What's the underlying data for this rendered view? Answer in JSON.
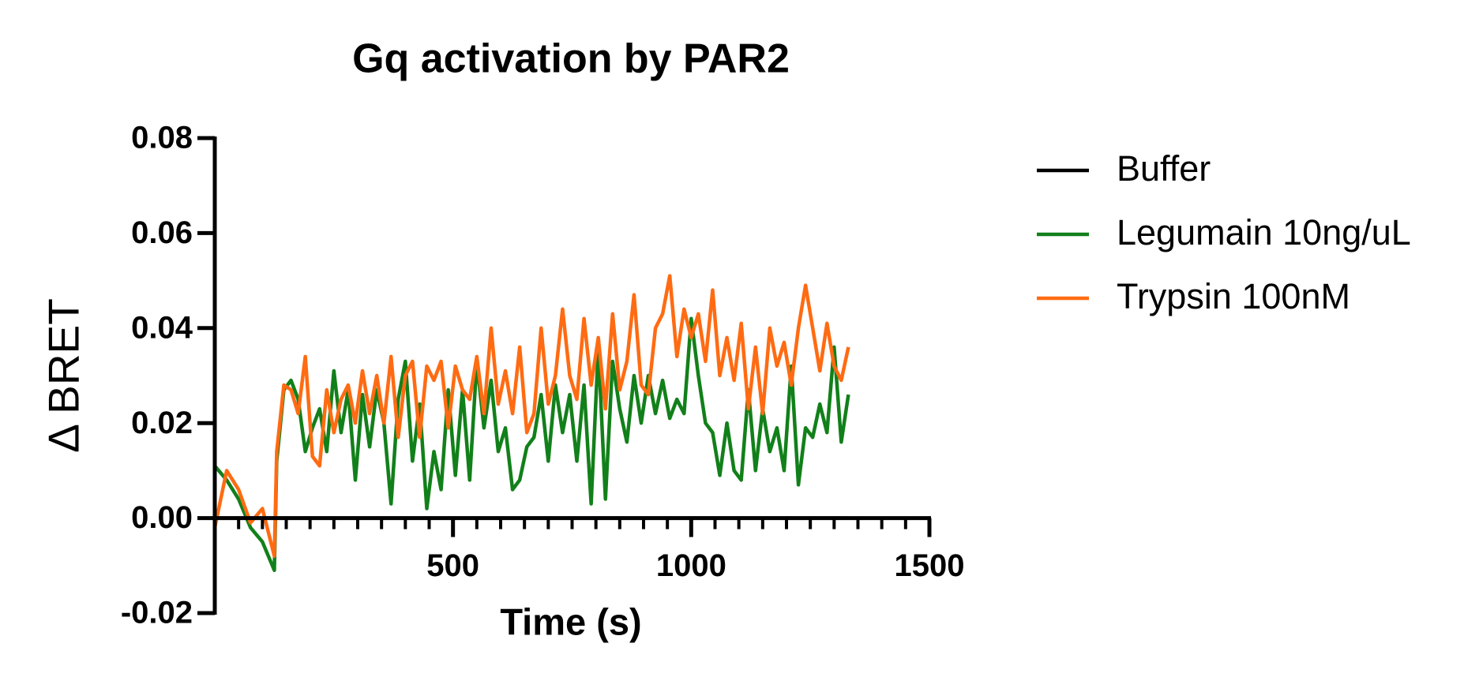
{
  "chart_data": {
    "type": "line",
    "title": "Gq activation by PAR2",
    "x_label": "Time (s)",
    "y_label": "Δ BRET",
    "xlim": [
      0,
      1500
    ],
    "xticks": [
      500,
      1000,
      1500
    ],
    "xminorticks": [
      0,
      50,
      100,
      150,
      200,
      250,
      300,
      350,
      400,
      450,
      550,
      600,
      650,
      700,
      750,
      800,
      850,
      900,
      950,
      1050,
      1100,
      1150,
      1200,
      1250,
      1300,
      1350,
      1400,
      1450
    ],
    "ylim": [
      -0.02,
      0.08
    ],
    "yticks": [
      -0.02,
      {
        "value": 0,
        "label": "0.00"
      },
      0.02,
      0.04,
      0.06,
      0.08
    ],
    "legend": "right",
    "x": [
      0,
      25,
      50,
      75,
      100,
      125,
      130,
      145,
      160,
      175,
      190,
      205,
      220,
      235,
      250,
      265,
      280,
      295,
      310,
      325,
      340,
      355,
      370,
      385,
      400,
      415,
      430,
      445,
      460,
      475,
      490,
      505,
      520,
      535,
      550,
      565,
      580,
      595,
      610,
      625,
      640,
      655,
      670,
      685,
      700,
      715,
      730,
      745,
      760,
      775,
      790,
      805,
      820,
      835,
      850,
      865,
      880,
      895,
      910,
      925,
      940,
      955,
      970,
      985,
      1000,
      1015,
      1030,
      1045,
      1060,
      1075,
      1090,
      1105,
      1120,
      1135,
      1150,
      1165,
      1180,
      1195,
      1210,
      1225,
      1240,
      1255,
      1270,
      1285,
      1300,
      1315,
      1330
    ],
    "series": [
      {
        "name": "Buffer",
        "color": "#000000",
        "values": [
          0,
          0,
          0,
          0,
          0,
          0,
          0,
          0,
          0,
          0,
          0,
          0,
          0,
          0,
          0,
          0,
          0,
          0,
          0,
          0,
          0,
          0,
          0,
          0,
          0,
          0,
          0,
          0,
          0,
          0,
          0,
          0,
          0,
          0,
          0,
          0,
          0,
          0,
          0,
          0,
          0,
          0,
          0,
          0,
          0,
          0,
          0,
          0,
          0,
          0,
          0,
          0,
          0,
          0,
          0,
          0,
          0,
          0,
          0,
          0,
          0,
          0,
          0,
          0,
          0,
          0,
          0,
          0,
          0,
          0,
          0,
          0,
          0,
          0,
          0,
          0,
          0,
          0,
          0,
          0,
          0,
          0,
          0,
          0,
          0,
          0,
          0
        ]
      },
      {
        "name": "Legumain 10ng/uL",
        "color": "#12801a",
        "values": [
          0.011,
          0.008,
          0.004,
          -0.002,
          -0.005,
          -0.011,
          0.012,
          0.027,
          0.029,
          0.025,
          0.014,
          0.019,
          0.023,
          0.014,
          0.031,
          0.018,
          0.027,
          0.008,
          0.026,
          0.015,
          0.027,
          0.02,
          0.003,
          0.025,
          0.033,
          0.012,
          0.024,
          0.002,
          0.014,
          0.006,
          0.027,
          0.009,
          0.027,
          0.008,
          0.033,
          0.019,
          0.029,
          0.014,
          0.019,
          0.006,
          0.008,
          0.015,
          0.017,
          0.026,
          0.012,
          0.028,
          0.018,
          0.026,
          0.012,
          0.028,
          0.003,
          0.036,
          0.004,
          0.033,
          0.023,
          0.016,
          0.03,
          0.02,
          0.03,
          0.022,
          0.029,
          0.021,
          0.025,
          0.022,
          0.042,
          0.03,
          0.02,
          0.018,
          0.009,
          0.02,
          0.01,
          0.008,
          0.027,
          0.01,
          0.023,
          0.014,
          0.019,
          0.01,
          0.032,
          0.007,
          0.019,
          0.017,
          0.024,
          0.018,
          0.036,
          0.016,
          0.026
        ]
      },
      {
        "name": "Trypsin 100nM",
        "color": "#ff6b12",
        "values": [
          -0.002,
          0.01,
          0.006,
          -0.001,
          0.002,
          -0.008,
          0.014,
          0.028,
          0.027,
          0.022,
          0.034,
          0.013,
          0.011,
          0.027,
          0.018,
          0.025,
          0.028,
          0.02,
          0.031,
          0.022,
          0.03,
          0.02,
          0.034,
          0.017,
          0.03,
          0.033,
          0.017,
          0.032,
          0.029,
          0.033,
          0.019,
          0.032,
          0.027,
          0.025,
          0.034,
          0.022,
          0.04,
          0.024,
          0.031,
          0.022,
          0.036,
          0.018,
          0.022,
          0.04,
          0.024,
          0.03,
          0.044,
          0.03,
          0.025,
          0.042,
          0.028,
          0.038,
          0.023,
          0.043,
          0.027,
          0.033,
          0.047,
          0.028,
          0.026,
          0.04,
          0.043,
          0.051,
          0.034,
          0.044,
          0.038,
          0.043,
          0.033,
          0.048,
          0.03,
          0.038,
          0.029,
          0.041,
          0.023,
          0.036,
          0.022,
          0.04,
          0.032,
          0.037,
          0.028,
          0.04,
          0.049,
          0.04,
          0.031,
          0.041,
          0.032,
          0.029,
          0.036
        ]
      }
    ]
  }
}
